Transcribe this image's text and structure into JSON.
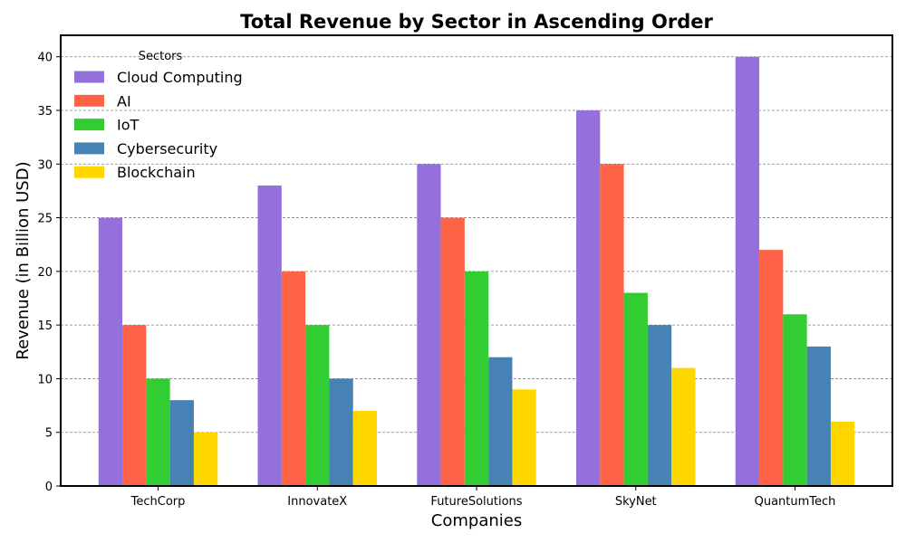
{
  "chart_data": {
    "type": "bar",
    "title": "Total Revenue by Sector in Ascending Order",
    "xlabel": "Companies",
    "ylabel": "Revenue (in Billion USD)",
    "ylim": [
      0,
      42
    ],
    "yticks": [
      0,
      5,
      10,
      15,
      20,
      25,
      30,
      35,
      40
    ],
    "grid": "y-dashed",
    "legend_title": "Sectors",
    "legend_position": "top-left",
    "categories": [
      "TechCorp",
      "InnovateX",
      "FutureSolutions",
      "SkyNet",
      "QuantumTech"
    ],
    "series": [
      {
        "name": "Cloud Computing",
        "color": "#9370DB",
        "values": [
          25,
          28,
          30,
          35,
          40
        ]
      },
      {
        "name": "AI",
        "color": "#FF6347",
        "values": [
          15,
          20,
          25,
          30,
          22
        ]
      },
      {
        "name": "IoT",
        "color": "#32CD32",
        "values": [
          10,
          15,
          20,
          18,
          16
        ]
      },
      {
        "name": "Cybersecurity",
        "color": "#4682B4",
        "values": [
          8,
          10,
          12,
          15,
          13
        ]
      },
      {
        "name": "Blockchain",
        "color": "#FFD700",
        "values": [
          5,
          7,
          9,
          11,
          6
        ]
      }
    ]
  }
}
